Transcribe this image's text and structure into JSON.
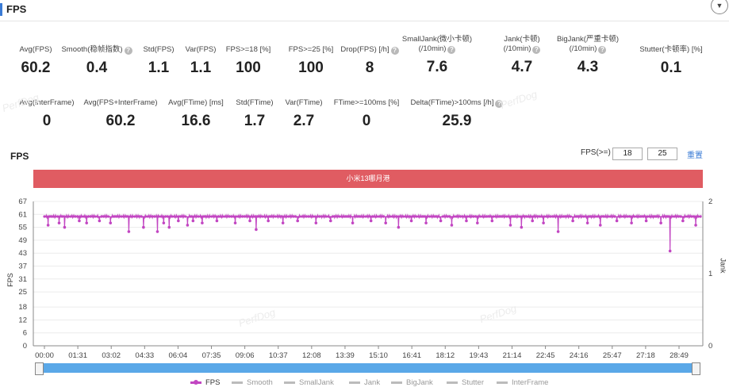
{
  "header": {
    "title": "FPS",
    "collapse_icon": "▼"
  },
  "stats_row1": [
    {
      "label": "Avg(FPS)",
      "value": "60.2",
      "help": false
    },
    {
      "label": "Smooth(稳帧指数)",
      "value": "0.4",
      "help": true
    },
    {
      "label": "Std(FPS)",
      "value": "1.1",
      "help": false
    },
    {
      "label": "Var(FPS)",
      "value": "1.1",
      "help": false
    },
    {
      "label": "FPS>=18 [%]",
      "value": "100",
      "help": false
    },
    {
      "label": "FPS>=25 [%]",
      "value": "100",
      "help": false
    },
    {
      "label": "Drop(FPS) [/h]",
      "value": "8",
      "help": true
    },
    {
      "label": "SmallJank(微小卡顿)",
      "label2": "(/10min)",
      "value": "7.6",
      "help": true
    },
    {
      "label": "Jank(卡顿)",
      "label2": "(/10min)",
      "value": "4.7",
      "help": true
    },
    {
      "label": "BigJank(严重卡顿)",
      "label2": "(/10min)",
      "value": "4.3",
      "help": true
    },
    {
      "label": "Stutter(卡顿率) [%]",
      "value": "0.1",
      "help": false
    }
  ],
  "stats_row2": [
    {
      "label": "Avg(InterFrame)",
      "value": "0",
      "help": false
    },
    {
      "label": "Avg(FPS+InterFrame)",
      "value": "60.2",
      "help": false
    },
    {
      "label": "Avg(FTime) [ms]",
      "value": "16.6",
      "help": false
    },
    {
      "label": "Std(FTime)",
      "value": "1.7",
      "help": false
    },
    {
      "label": "Var(FTime)",
      "value": "2.7",
      "help": false
    },
    {
      "label": "FTime>=100ms [%]",
      "value": "0",
      "help": false
    },
    {
      "label": "Delta(FTime)>100ms [/h]",
      "value": "25.9",
      "help": true
    }
  ],
  "watermark": "PerfDog",
  "chart_section": {
    "title": "FPS",
    "threshold_label": "FPS(>=)",
    "threshold_1": "18",
    "threshold_2": "25",
    "reset_label": "重置",
    "banner": "小米13哪月港"
  },
  "chart_data": {
    "type": "line",
    "title": "FPS",
    "xlabel": "",
    "ylabel": "FPS",
    "y2label": "Jank",
    "ylim": [
      0,
      67
    ],
    "y2lim": [
      0,
      2
    ],
    "yticks": [
      0,
      6,
      12,
      18,
      25,
      31,
      37,
      43,
      49,
      55,
      61,
      67
    ],
    "y2ticks": [
      0,
      1,
      2
    ],
    "xticks": [
      "00:00",
      "01:31",
      "03:02",
      "04:33",
      "06:04",
      "07:35",
      "09:06",
      "10:37",
      "12:08",
      "13:39",
      "15:10",
      "16:41",
      "18:12",
      "19:43",
      "21:14",
      "22:45",
      "24:16",
      "25:47",
      "27:18",
      "28:49"
    ],
    "duration_seconds": 1790,
    "baseline_fps": 60,
    "dips": [
      {
        "t": 10,
        "fps": 56
      },
      {
        "t": 40,
        "fps": 57
      },
      {
        "t": 55,
        "fps": 55
      },
      {
        "t": 95,
        "fps": 58
      },
      {
        "t": 115,
        "fps": 57
      },
      {
        "t": 150,
        "fps": 58
      },
      {
        "t": 180,
        "fps": 57
      },
      {
        "t": 230,
        "fps": 53
      },
      {
        "t": 270,
        "fps": 55
      },
      {
        "t": 308,
        "fps": 53
      },
      {
        "t": 325,
        "fps": 57
      },
      {
        "t": 340,
        "fps": 55
      },
      {
        "t": 365,
        "fps": 58
      },
      {
        "t": 390,
        "fps": 56
      },
      {
        "t": 405,
        "fps": 58
      },
      {
        "t": 430,
        "fps": 57
      },
      {
        "t": 470,
        "fps": 58
      },
      {
        "t": 520,
        "fps": 57
      },
      {
        "t": 560,
        "fps": 58
      },
      {
        "t": 577,
        "fps": 54
      },
      {
        "t": 610,
        "fps": 58
      },
      {
        "t": 650,
        "fps": 57
      },
      {
        "t": 690,
        "fps": 58
      },
      {
        "t": 740,
        "fps": 57
      },
      {
        "t": 780,
        "fps": 58
      },
      {
        "t": 840,
        "fps": 57
      },
      {
        "t": 890,
        "fps": 58
      },
      {
        "t": 930,
        "fps": 57
      },
      {
        "t": 965,
        "fps": 55
      },
      {
        "t": 1000,
        "fps": 58
      },
      {
        "t": 1040,
        "fps": 57
      },
      {
        "t": 1080,
        "fps": 58
      },
      {
        "t": 1110,
        "fps": 56
      },
      {
        "t": 1150,
        "fps": 58
      },
      {
        "t": 1180,
        "fps": 57
      },
      {
        "t": 1220,
        "fps": 58
      },
      {
        "t": 1270,
        "fps": 56
      },
      {
        "t": 1300,
        "fps": 55
      },
      {
        "t": 1330,
        "fps": 58
      },
      {
        "t": 1360,
        "fps": 57
      },
      {
        "t": 1400,
        "fps": 53
      },
      {
        "t": 1440,
        "fps": 58
      },
      {
        "t": 1480,
        "fps": 57
      },
      {
        "t": 1515,
        "fps": 56
      },
      {
        "t": 1560,
        "fps": 58
      },
      {
        "t": 1600,
        "fps": 57
      },
      {
        "t": 1640,
        "fps": 58
      },
      {
        "t": 1680,
        "fps": 57
      },
      {
        "t": 1705,
        "fps": 44
      },
      {
        "t": 1740,
        "fps": 58
      },
      {
        "t": 1775,
        "fps": 56
      }
    ],
    "series": [
      {
        "name": "FPS",
        "color": "#c246c2",
        "active": true
      },
      {
        "name": "Smooth",
        "active": false
      },
      {
        "name": "SmallJank",
        "active": false
      },
      {
        "name": "Jank",
        "active": false
      },
      {
        "name": "BigJank",
        "active": false
      },
      {
        "name": "Stutter",
        "active": false
      },
      {
        "name": "InterFrame",
        "active": false
      }
    ]
  }
}
